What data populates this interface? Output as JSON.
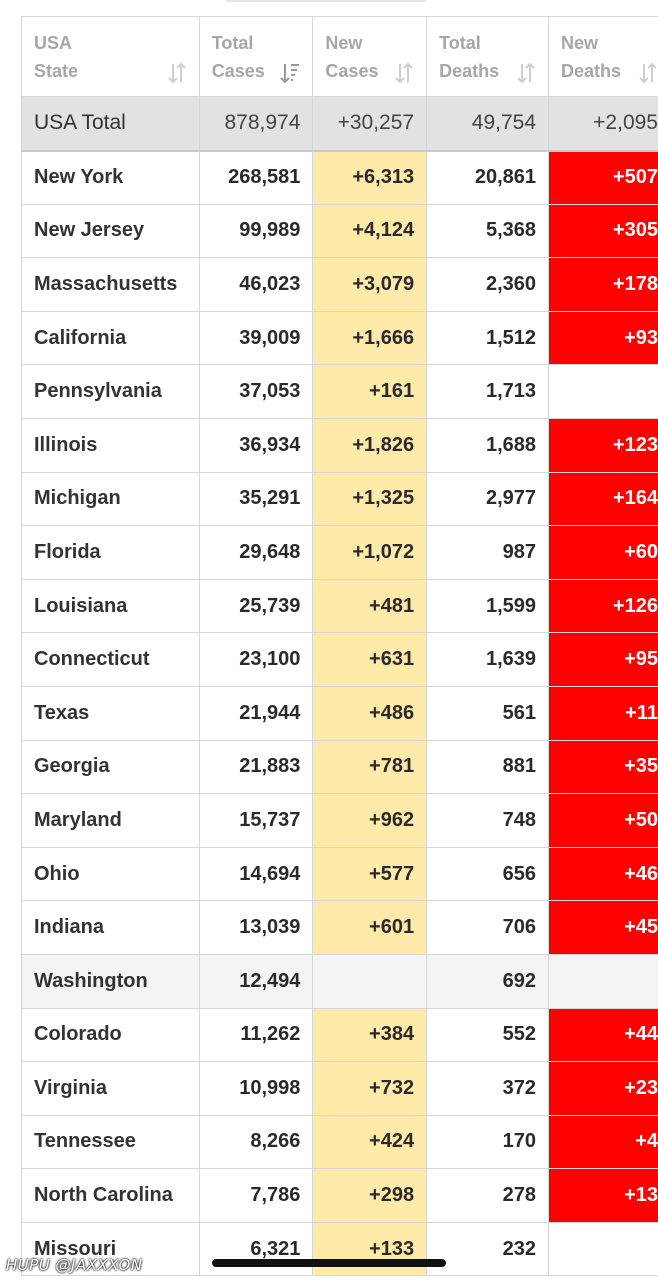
{
  "table": {
    "headers": [
      {
        "line1": "USA",
        "line2": "State"
      },
      {
        "line1": "Total",
        "line2": "Cases"
      },
      {
        "line1": "New",
        "line2": "Cases"
      },
      {
        "line1": "Total",
        "line2": "Deaths"
      },
      {
        "line1": "New",
        "line2": "Deaths"
      }
    ],
    "total_row": {
      "state": "USA Total",
      "total_cases": "878,974",
      "new_cases": "+30,257",
      "total_deaths": "49,754",
      "new_deaths": "+2,095"
    },
    "rows": [
      {
        "state": "New York",
        "total_cases": "268,581",
        "new_cases": "+6,313",
        "total_deaths": "20,861",
        "new_deaths": "+507"
      },
      {
        "state": "New Jersey",
        "total_cases": "99,989",
        "new_cases": "+4,124",
        "total_deaths": "5,368",
        "new_deaths": "+305"
      },
      {
        "state": "Massachusetts",
        "total_cases": "46,023",
        "new_cases": "+3,079",
        "total_deaths": "2,360",
        "new_deaths": "+178"
      },
      {
        "state": "California",
        "total_cases": "39,009",
        "new_cases": "+1,666",
        "total_deaths": "1,512",
        "new_deaths": "+93"
      },
      {
        "state": "Pennsylvania",
        "total_cases": "37,053",
        "new_cases": "+161",
        "total_deaths": "1,713",
        "new_deaths": ""
      },
      {
        "state": "Illinois",
        "total_cases": "36,934",
        "new_cases": "+1,826",
        "total_deaths": "1,688",
        "new_deaths": "+123"
      },
      {
        "state": "Michigan",
        "total_cases": "35,291",
        "new_cases": "+1,325",
        "total_deaths": "2,977",
        "new_deaths": "+164"
      },
      {
        "state": "Florida",
        "total_cases": "29,648",
        "new_cases": "+1,072",
        "total_deaths": "987",
        "new_deaths": "+60"
      },
      {
        "state": "Louisiana",
        "total_cases": "25,739",
        "new_cases": "+481",
        "total_deaths": "1,599",
        "new_deaths": "+126"
      },
      {
        "state": "Connecticut",
        "total_cases": "23,100",
        "new_cases": "+631",
        "total_deaths": "1,639",
        "new_deaths": "+95"
      },
      {
        "state": "Texas",
        "total_cases": "21,944",
        "new_cases": "+486",
        "total_deaths": "561",
        "new_deaths": "+11"
      },
      {
        "state": "Georgia",
        "total_cases": "21,883",
        "new_cases": "+781",
        "total_deaths": "881",
        "new_deaths": "+35"
      },
      {
        "state": "Maryland",
        "total_cases": "15,737",
        "new_cases": "+962",
        "total_deaths": "748",
        "new_deaths": "+50"
      },
      {
        "state": "Ohio",
        "total_cases": "14,694",
        "new_cases": "+577",
        "total_deaths": "656",
        "new_deaths": "+46"
      },
      {
        "state": "Indiana",
        "total_cases": "13,039",
        "new_cases": "+601",
        "total_deaths": "706",
        "new_deaths": "+45"
      },
      {
        "state": "Washington",
        "total_cases": "12,494",
        "new_cases": "",
        "total_deaths": "692",
        "new_deaths": ""
      },
      {
        "state": "Colorado",
        "total_cases": "11,262",
        "new_cases": "+384",
        "total_deaths": "552",
        "new_deaths": "+44"
      },
      {
        "state": "Virginia",
        "total_cases": "10,998",
        "new_cases": "+732",
        "total_deaths": "372",
        "new_deaths": "+23"
      },
      {
        "state": "Tennessee",
        "total_cases": "8,266",
        "new_cases": "+424",
        "total_deaths": "170",
        "new_deaths": "+4"
      },
      {
        "state": "North Carolina",
        "total_cases": "7,786",
        "new_cases": "+298",
        "total_deaths": "278",
        "new_deaths": "+13"
      },
      {
        "state": "Missouri",
        "total_cases": "6,321",
        "new_cases": "+133",
        "total_deaths": "232",
        "new_deaths": ""
      }
    ]
  },
  "colors": {
    "new_cases_bg": "#ffeaa9",
    "new_deaths_bg": "#ff0000",
    "total_row_bg": "#e2e2e2",
    "header_text": "#a6a6a6"
  },
  "icons": {
    "sort": "sort-arrows-icon",
    "sort_active": "sort-desc-icon"
  },
  "watermark": "HUPU @JAXXXON"
}
